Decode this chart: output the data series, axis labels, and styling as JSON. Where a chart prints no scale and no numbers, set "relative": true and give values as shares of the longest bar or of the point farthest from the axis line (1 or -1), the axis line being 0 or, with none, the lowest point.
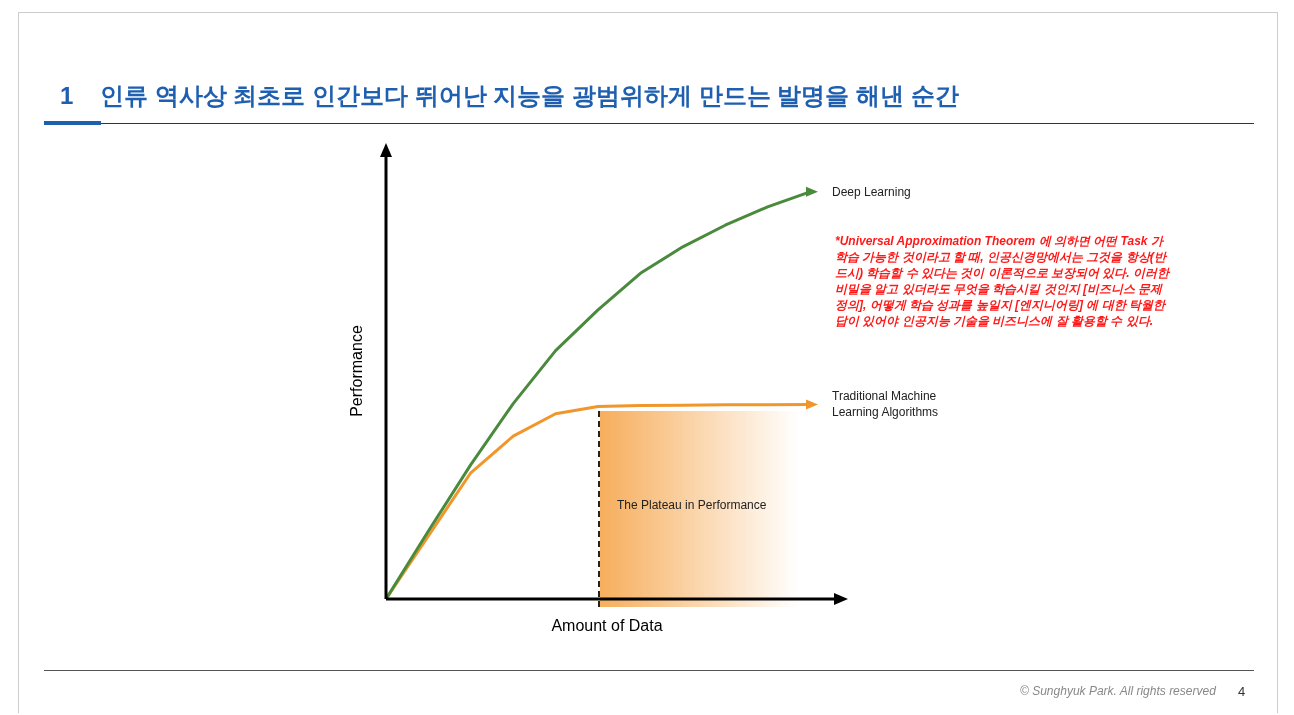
{
  "chart_data": {
    "type": "line",
    "title": "1    인류 역사상 최초로 인간보다 뛰어난 지능을 광범위하게 만드는 발명을 해낸 순간",
    "xlabel": "Amount of Data",
    "ylabel": "Performance",
    "relative": true,
    "legend": "right",
    "categories": [
      null,
      null,
      null,
      null,
      null,
      null,
      null,
      null,
      null,
      null,
      null
    ],
    "series": [
      {
        "name": "Deep Learning",
        "color": "#4a8a3c",
        "values": [
          0,
          0.167,
          0.33,
          0.48,
          0.61,
          0.71,
          0.8,
          0.865,
          0.918,
          0.963,
          1
        ]
      },
      {
        "name": "Traditional Machine Learning Algorithms",
        "color": "#f0962a",
        "values": [
          0,
          0.155,
          0.31,
          0.4,
          0.455,
          0.473,
          0.475,
          0.476,
          0.477,
          0.477,
          0.478
        ]
      }
    ],
    "annotations": [
      "*Universal Approximation Theorem 에 의하면 어떤 Task 가 학습 가능한 것이라고 할 때, 인공신경망에서는 그것을 항상(반드시) 학습할 수 있다는 것이 이론적으로 보장되어 있다. 이러한 비밀을 알고 있더라도 무엇을 학습시킬 것인지 [비즈니스 문제 정의], 어떻게 학습 성과를 높일지 [엔지니어링] 에 대한 탁월한 답이 있어야 인공지능 기술을 비즈니스에 잘 활용할 수 있다.",
      "The Plateau in Performance",
      "© Sunghyuk Park. All rights reserved",
      "4"
    ]
  }
}
